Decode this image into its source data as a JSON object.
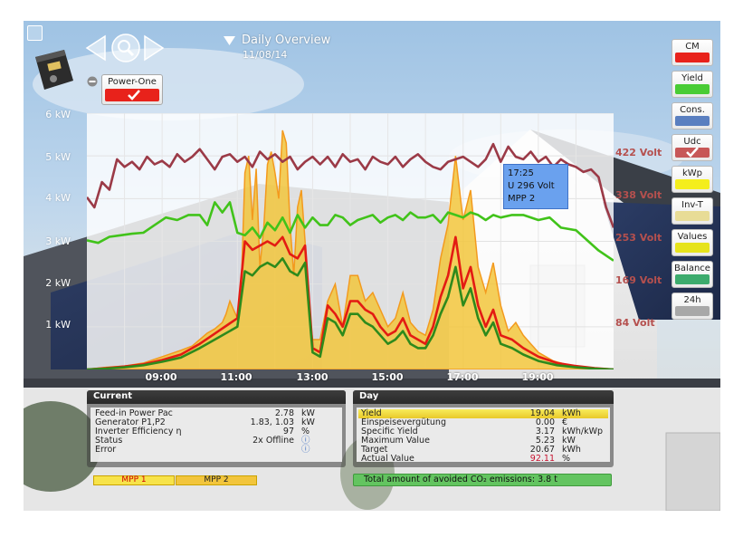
{
  "header": {
    "title": "Daily Overview",
    "date": "11/08/14",
    "inverter_label": "Power-One",
    "accent": "#e8221b"
  },
  "sidebar": {
    "buttons": [
      {
        "label": "CM",
        "color": "#e8221b",
        "checked": false
      },
      {
        "label": "Yield",
        "color": "#49cc35",
        "checked": false
      },
      {
        "label": "Cons.",
        "color": "#5a7fc0",
        "checked": false
      },
      {
        "label": "Udc",
        "color": "#c75757",
        "checked": true
      },
      {
        "label": "kWp",
        "color": "#f4ee1c",
        "checked": false
      },
      {
        "label": "Inv-T",
        "color": "#e8dc96",
        "checked": false
      },
      {
        "label": "Values",
        "color": "#e6e31c",
        "checked": false
      },
      {
        "label": "Balance",
        "color": "#3cab6d",
        "checked": false
      },
      {
        "label": "24h",
        "color": "#a8a8a8",
        "checked": false
      }
    ]
  },
  "chart_data": {
    "type": "line",
    "x_ticks": [
      "09:00",
      "11:00",
      "13:00",
      "15:00",
      "17:00",
      "19:00"
    ],
    "y_ticks_left": [
      "6 kW",
      "5 kW",
      "4 kW",
      "3 kW",
      "2 kW",
      "1 kW"
    ],
    "y_ticks_right": [
      "422 Volt",
      "338 Volt",
      "253 Volt",
      "169 Volt",
      "84 Volt"
    ],
    "ylim_kw": [
      0,
      6
    ],
    "ylim_volt": [
      0,
      506
    ],
    "x_range_hours": [
      7.0,
      21.0
    ],
    "series": [
      {
        "name": "MPP 1",
        "kind": "area",
        "color": "#f2c53c",
        "x": [
          7.0,
          7.5,
          8.0,
          8.5,
          9.0,
          9.5,
          9.8,
          10.0,
          10.2,
          10.4,
          10.6,
          10.7,
          10.8,
          10.9,
          11.0,
          11.1,
          11.2,
          11.3,
          11.4,
          11.5,
          11.6,
          11.7,
          11.8,
          11.9,
          12.0,
          12.1,
          12.2,
          12.3,
          12.4,
          12.5,
          12.6,
          12.7,
          12.8,
          12.9,
          13.0,
          13.2,
          13.4,
          13.6,
          13.8,
          14.0,
          14.2,
          14.4,
          14.6,
          14.8,
          15.0,
          15.2,
          15.4,
          15.6,
          15.8,
          16.0,
          16.2,
          16.4,
          16.6,
          16.8,
          17.0,
          17.2,
          17.4,
          17.6,
          17.8,
          18.0,
          18.2,
          18.4,
          18.6,
          18.8,
          19.0,
          19.2,
          19.4,
          19.6,
          19.8,
          20.0,
          20.3,
          20.6,
          21.0
        ],
        "y": [
          0,
          0.05,
          0.08,
          0.15,
          0.3,
          0.45,
          0.55,
          0.7,
          0.85,
          0.95,
          1.1,
          1.3,
          1.6,
          1.4,
          1.2,
          1.8,
          4.6,
          5.0,
          3.5,
          4.7,
          2.4,
          3.3,
          4.8,
          5.1,
          4.6,
          4.0,
          5.6,
          5.3,
          3.4,
          2.2,
          3.8,
          4.2,
          3.0,
          1.4,
          0.7,
          0.7,
          1.6,
          2.0,
          1.0,
          2.2,
          2.2,
          1.6,
          1.8,
          1.4,
          1.0,
          1.2,
          1.8,
          1.1,
          0.9,
          0.8,
          1.4,
          2.6,
          3.4,
          5.0,
          3.5,
          4.2,
          2.4,
          1.8,
          2.5,
          1.5,
          0.9,
          1.1,
          0.8,
          0.6,
          0.4,
          0.3,
          0.2,
          0.15,
          0.1,
          0.08,
          0.05,
          0.02,
          0
        ]
      },
      {
        "name": "MPP 1 power",
        "kind": "line",
        "color": "#e31b13",
        "x": [
          7.0,
          7.5,
          8.0,
          8.5,
          9.0,
          9.5,
          10.0,
          10.5,
          11.0,
          11.2,
          11.4,
          11.6,
          11.8,
          12.0,
          12.2,
          12.4,
          12.6,
          12.8,
          13.0,
          13.2,
          13.4,
          13.6,
          13.8,
          14.0,
          14.2,
          14.4,
          14.6,
          14.8,
          15.0,
          15.2,
          15.4,
          15.6,
          15.8,
          16.0,
          16.2,
          16.4,
          16.6,
          16.8,
          17.0,
          17.2,
          17.4,
          17.6,
          17.8,
          18.0,
          18.3,
          18.6,
          19.0,
          19.5,
          20.0,
          20.5,
          21.0
        ],
        "y": [
          0,
          0.03,
          0.07,
          0.12,
          0.22,
          0.35,
          0.6,
          0.9,
          1.2,
          3.0,
          2.8,
          2.9,
          3.0,
          2.9,
          3.1,
          2.7,
          2.6,
          2.9,
          0.5,
          0.4,
          1.5,
          1.3,
          1.0,
          1.6,
          1.6,
          1.4,
          1.3,
          1.0,
          0.8,
          0.9,
          1.2,
          0.8,
          0.7,
          0.6,
          1.0,
          1.7,
          2.2,
          3.1,
          1.9,
          2.4,
          1.5,
          1.0,
          1.4,
          0.8,
          0.7,
          0.5,
          0.3,
          0.15,
          0.08,
          0.03,
          0
        ]
      },
      {
        "name": "Yield",
        "kind": "line",
        "color": "#2e8a1c",
        "x": [
          7.0,
          7.5,
          8.0,
          8.5,
          9.0,
          9.5,
          10.0,
          10.5,
          11.0,
          11.2,
          11.4,
          11.6,
          11.8,
          12.0,
          12.2,
          12.4,
          12.6,
          12.8,
          13.0,
          13.2,
          13.4,
          13.6,
          13.8,
          14.0,
          14.2,
          14.4,
          14.6,
          14.8,
          15.0,
          15.2,
          15.4,
          15.6,
          15.8,
          16.0,
          16.2,
          16.4,
          16.6,
          16.8,
          17.0,
          17.2,
          17.4,
          17.6,
          17.8,
          18.0,
          18.3,
          18.6,
          19.0,
          19.5,
          20.0,
          20.5,
          21.0
        ],
        "y": [
          0,
          0.02,
          0.05,
          0.1,
          0.18,
          0.28,
          0.5,
          0.75,
          1.0,
          2.3,
          2.2,
          2.4,
          2.5,
          2.4,
          2.6,
          2.3,
          2.2,
          2.5,
          0.4,
          0.3,
          1.2,
          1.1,
          0.8,
          1.3,
          1.3,
          1.1,
          1.0,
          0.8,
          0.6,
          0.7,
          0.9,
          0.6,
          0.5,
          0.5,
          0.8,
          1.3,
          1.7,
          2.4,
          1.5,
          1.9,
          1.2,
          0.8,
          1.1,
          0.6,
          0.5,
          0.35,
          0.2,
          0.1,
          0.05,
          0.02,
          0
        ]
      },
      {
        "name": "Udc",
        "kind": "line",
        "color": "#9b3a47",
        "axis": "volt",
        "x": [
          7.0,
          7.2,
          7.4,
          7.6,
          7.8,
          8.0,
          8.2,
          8.4,
          8.6,
          8.8,
          9.0,
          9.2,
          9.4,
          9.6,
          9.8,
          10.0,
          10.2,
          10.4,
          10.6,
          10.8,
          11.0,
          11.2,
          11.4,
          11.6,
          11.8,
          12.0,
          12.2,
          12.4,
          12.6,
          12.8,
          13.0,
          13.2,
          13.4,
          13.6,
          13.8,
          14.0,
          14.2,
          14.4,
          14.6,
          14.8,
          15.0,
          15.2,
          15.4,
          15.6,
          15.8,
          16.0,
          16.2,
          16.4,
          16.6,
          16.8,
          17.0,
          17.2,
          17.4,
          17.6,
          17.8,
          18.0,
          18.2,
          18.4,
          18.6,
          18.8,
          19.0,
          19.2,
          19.4,
          19.6,
          19.8,
          20.0,
          20.2,
          20.4,
          20.6,
          20.8,
          21.0
        ],
        "y": [
          340,
          320,
          370,
          355,
          415,
          400,
          410,
          395,
          420,
          405,
          412,
          400,
          425,
          410,
          420,
          435,
          415,
          395,
          420,
          425,
          410,
          420,
          400,
          430,
          415,
          425,
          410,
          420,
          395,
          410,
          420,
          405,
          420,
          400,
          425,
          410,
          415,
          395,
          420,
          410,
          405,
          420,
          400,
          415,
          425,
          410,
          400,
          395,
          410,
          415,
          420,
          410,
          400,
          415,
          445,
          410,
          440,
          420,
          415,
          430,
          410,
          420,
          400,
          415,
          405,
          400,
          390,
          395,
          380,
          320,
          280
        ]
      },
      {
        "name": "MPP 2 voltage",
        "kind": "line",
        "color": "#41c31a",
        "axis": "volt",
        "x": [
          7.0,
          7.3,
          7.6,
          7.9,
          8.2,
          8.5,
          8.8,
          9.1,
          9.4,
          9.7,
          10.0,
          10.2,
          10.4,
          10.6,
          10.8,
          11.0,
          11.2,
          11.4,
          11.6,
          11.8,
          12.0,
          12.2,
          12.4,
          12.6,
          12.8,
          13.0,
          13.2,
          13.4,
          13.6,
          13.8,
          14.0,
          14.2,
          14.4,
          14.6,
          14.8,
          15.0,
          15.2,
          15.4,
          15.6,
          15.8,
          16.0,
          16.2,
          16.4,
          16.6,
          16.8,
          17.0,
          17.2,
          17.4,
          17.6,
          17.8,
          18.0,
          18.3,
          18.6,
          19.0,
          19.3,
          19.6,
          20.0,
          20.3,
          20.6,
          21.0
        ],
        "y": [
          255,
          250,
          262,
          265,
          268,
          270,
          285,
          300,
          295,
          305,
          305,
          285,
          330,
          310,
          330,
          270,
          265,
          280,
          260,
          290,
          275,
          300,
          270,
          305,
          280,
          300,
          285,
          285,
          305,
          300,
          285,
          295,
          300,
          305,
          290,
          300,
          305,
          295,
          310,
          300,
          300,
          305,
          290,
          310,
          305,
          300,
          310,
          305,
          295,
          305,
          300,
          305,
          305,
          295,
          300,
          280,
          275,
          255,
          235,
          215
        ]
      }
    ]
  },
  "tooltip": {
    "time": "17:25",
    "value": "U 296 Volt",
    "series": "MPP 2"
  },
  "current_panel": {
    "title": "Current",
    "rows": [
      {
        "label": "Feed-in Power Pac",
        "value": "2.78",
        "unit": "kW"
      },
      {
        "label": "Generator P1,P2",
        "value": "1.83, 1.03",
        "unit": "kW"
      },
      {
        "label": "Inverter Efficiency η",
        "value": "97",
        "unit": "%"
      },
      {
        "label": "Status",
        "value": "2x Offline",
        "unit": "ⓘ"
      },
      {
        "label": "Error",
        "value": "",
        "unit": "ⓘ"
      }
    ]
  },
  "day_panel": {
    "title": "Day",
    "rows": [
      {
        "label": "Yield",
        "value": "19.04",
        "unit": "kWh"
      },
      {
        "label": "Einspeisevergütung",
        "value": "0.00",
        "unit": "€"
      },
      {
        "label": "Specific Yield",
        "value": "3.17",
        "unit": "kWh/kWp"
      },
      {
        "label": "Maximum Value",
        "value": "5.23",
        "unit": "kW"
      },
      {
        "label": "Target",
        "value": "20.67",
        "unit": "kWh"
      },
      {
        "label": "Actual Value",
        "value": "92.11",
        "unit": "%"
      }
    ]
  },
  "legend": {
    "mpp1": "MPP 1",
    "mpp2": "MPP 2"
  },
  "co2": {
    "text": "Total amount of avoided CO₂   emissions: 3.8 t"
  }
}
